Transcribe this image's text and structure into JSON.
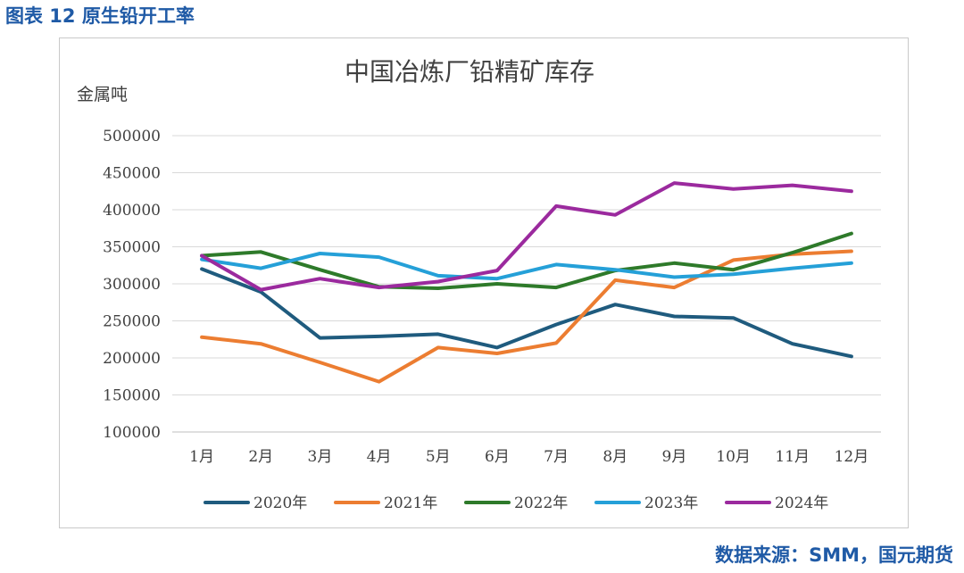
{
  "figure_title": "图表 12 原生铅开工率",
  "source": "数据来源：SMM，国元期货",
  "chart_data": {
    "type": "line",
    "title": "中国冶炼厂铅精矿库存",
    "ylabel": "金属吨",
    "xlabel": "",
    "categories": [
      "1月",
      "2月",
      "3月",
      "4月",
      "5月",
      "6月",
      "7月",
      "8月",
      "9月",
      "10月",
      "11月",
      "12月"
    ],
    "ylim": [
      100000,
      500000
    ],
    "yticks": [
      100000,
      150000,
      200000,
      250000,
      300000,
      350000,
      400000,
      450000,
      500000
    ],
    "grid": true,
    "legend": "bottom",
    "series": [
      {
        "name": "2020年",
        "color": "#1f5b7e",
        "values": [
          320000,
          289000,
          227000,
          229000,
          232000,
          214000,
          245000,
          272000,
          256000,
          254000,
          219000,
          202000
        ]
      },
      {
        "name": "2021年",
        "color": "#ec7d31",
        "values": [
          228000,
          219000,
          194000,
          168000,
          214000,
          206000,
          220000,
          305000,
          295000,
          332000,
          340000,
          344000
        ]
      },
      {
        "name": "2022年",
        "color": "#2e7a2a",
        "values": [
          338000,
          343000,
          319000,
          296000,
          294000,
          300000,
          295000,
          318000,
          328000,
          319000,
          342000,
          368000
        ]
      },
      {
        "name": "2023年",
        "color": "#25a0d8",
        "values": [
          333000,
          321000,
          341000,
          336000,
          311000,
          307000,
          326000,
          319000,
          309000,
          313000,
          321000,
          328000
        ]
      },
      {
        "name": "2024年",
        "color": "#9b2a9e",
        "values": [
          338000,
          292000,
          307000,
          295000,
          303000,
          318000,
          405000,
          393000,
          436000,
          428000,
          433000,
          425000
        ]
      }
    ]
  }
}
